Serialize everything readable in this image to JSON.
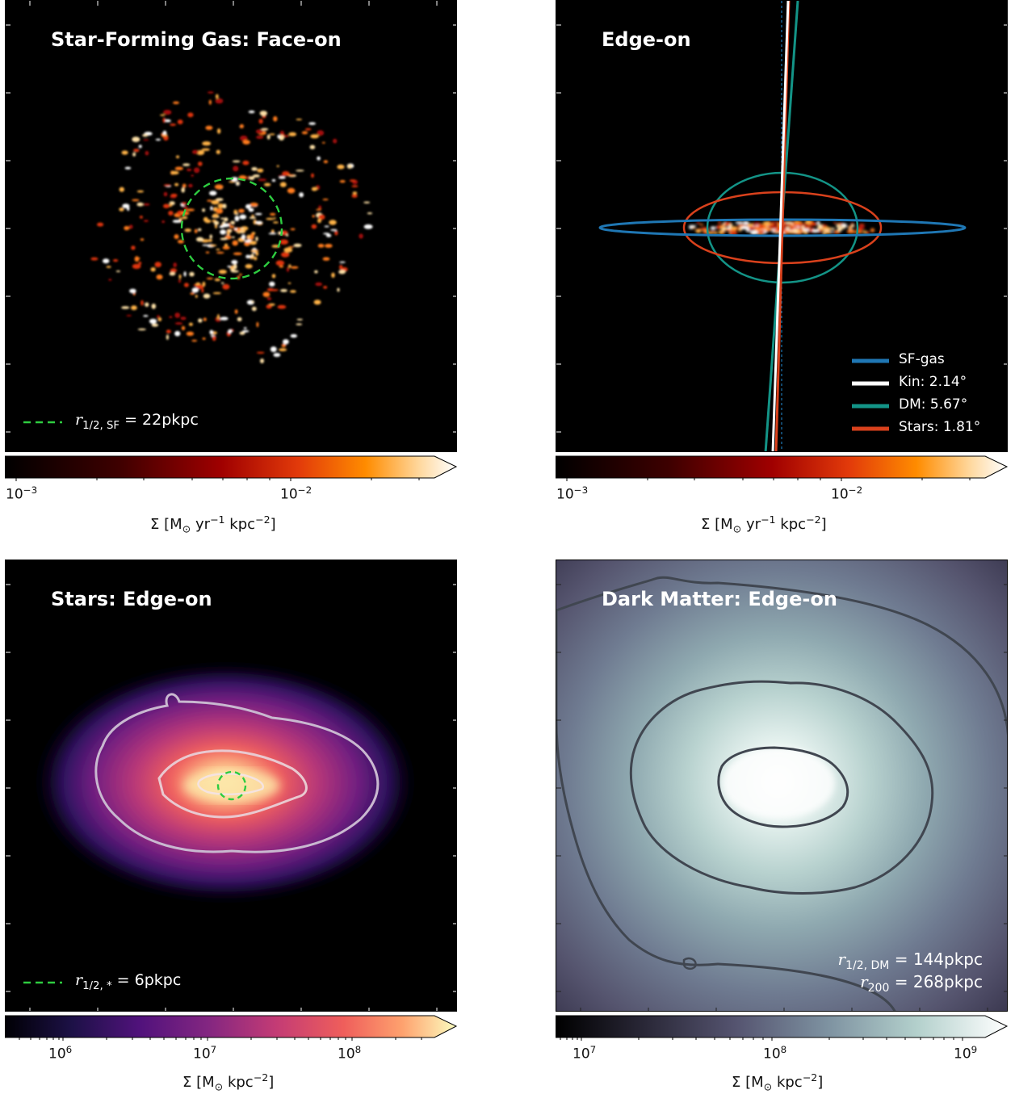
{
  "panels": {
    "sf_face": {
      "title": "Star-Forming Gas: Face-on",
      "legend_symbol": "r",
      "legend_sub": "1/2, SF",
      "legend_value": "= 22pkpc",
      "circle_color": "#2ecc40"
    },
    "sf_edge": {
      "title": "Edge-on",
      "legend": [
        {
          "label": "SF-gas",
          "color": "#1f77b4"
        },
        {
          "label": "Kin: 2.14°",
          "color": "#ffffff"
        },
        {
          "label": "DM: 5.67°",
          "color": "#139487"
        },
        {
          "label": "Stars: 1.81°",
          "color": "#d9411c"
        }
      ]
    },
    "stars_edge": {
      "title": "Stars: Edge-on",
      "legend_symbol": "r",
      "legend_sub": "1/2, *",
      "legend_value": "= 6pkpc",
      "circle_color": "#2ecc40"
    },
    "dm_edge": {
      "title": "Dark Matter: Edge-on",
      "line1_symbol": "r",
      "line1_sub": "1/2, DM",
      "line1_value": "= 144pkpc",
      "line2_symbol": "r",
      "line2_sub": "200",
      "line2_value": "= 268pkpc"
    }
  },
  "colorbars": {
    "sf1": {
      "ticks": [
        "10",
        "10"
      ],
      "exps": [
        "−3",
        "−2"
      ],
      "label_pre": "Σ [M",
      "label_sun": "⊙",
      "label_mid": " yr",
      "label_exp1": "−1",
      "label_post": " kpc",
      "label_exp2": "−2",
      "label_end": "]"
    },
    "sf2": {
      "ticks": [
        "10",
        "10"
      ],
      "exps": [
        "−3",
        "−2"
      ],
      "label_pre": "Σ [M",
      "label_sun": "⊙",
      "label_mid": " yr",
      "label_exp1": "−1",
      "label_post": " kpc",
      "label_exp2": "−2",
      "label_end": "]"
    },
    "stars": {
      "ticks": [
        "10",
        "10",
        "10"
      ],
      "exps": [
        "6",
        "7",
        "8"
      ],
      "label_pre": "Σ [M",
      "label_sun": "⊙",
      "label_post": " kpc",
      "label_exp2": "−2",
      "label_end": "]"
    },
    "dm": {
      "ticks": [
        "10",
        "10",
        "10"
      ],
      "exps": [
        "7",
        "8",
        "9"
      ],
      "label_pre": "Σ [M",
      "label_sun": "⊙",
      "label_post": " kpc",
      "label_exp2": "−2",
      "label_end": "]"
    }
  },
  "colors": {
    "sfgas": "#1f77b4",
    "kin": "#ffffff",
    "dm": "#139487",
    "stars": "#d9411c",
    "halfmass": "#2ecc40"
  }
}
